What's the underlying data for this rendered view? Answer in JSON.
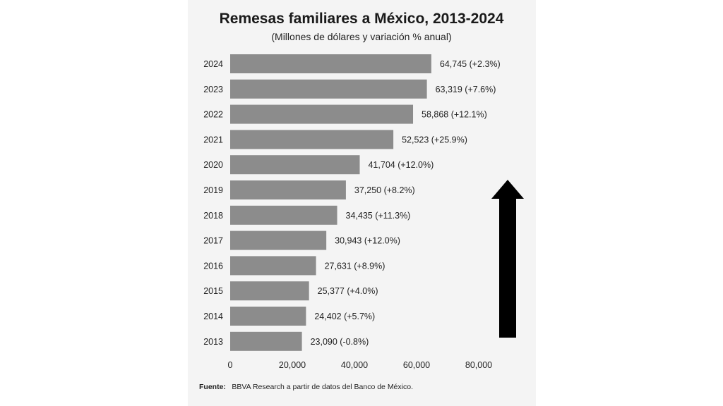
{
  "chart_data": {
    "type": "bar",
    "orientation": "horizontal",
    "title": "Remesas familiares a México, 2013-2024",
    "subtitle": "(Millones de dólares y variación % anual)",
    "categories": [
      "2024",
      "2023",
      "2022",
      "2021",
      "2020",
      "2019",
      "2018",
      "2017",
      "2016",
      "2015",
      "2014",
      "2013"
    ],
    "values": [
      64745,
      63319,
      58868,
      52523,
      41704,
      37250,
      34435,
      30943,
      27631,
      25377,
      24402,
      23090
    ],
    "data_labels": [
      "64,745 (+2.3%)",
      "63,319 (+7.6%)",
      "58,868 (+12.1%)",
      "52,523 (+25.9%)",
      "41,704 (+12.0%)",
      "37,250 (+8.2%)",
      "34,435 (+11.3%)",
      "30,943 (+12.0%)",
      "27,631 (+8.9%)",
      "25,377 (+4.0%)",
      "24,402 (+5.7%)",
      "23,090 (-0.8%)"
    ],
    "x_ticks": [
      0,
      20000,
      40000,
      60000,
      80000
    ],
    "x_tick_labels": [
      "0",
      "20,000",
      "40,000",
      "60,000",
      "80,000"
    ],
    "xlim": [
      0,
      80000
    ],
    "grid": false,
    "bar_color": "#8c8c8c",
    "annotation": "up-arrow"
  },
  "source": {
    "label": "Fuente:",
    "text": "BBVA Research a partir de datos del Banco de México."
  },
  "colors": {
    "panel_background": "#f4f4f4",
    "bar": "#8c8c8c",
    "arrow": "#000000",
    "text": "#222222"
  }
}
